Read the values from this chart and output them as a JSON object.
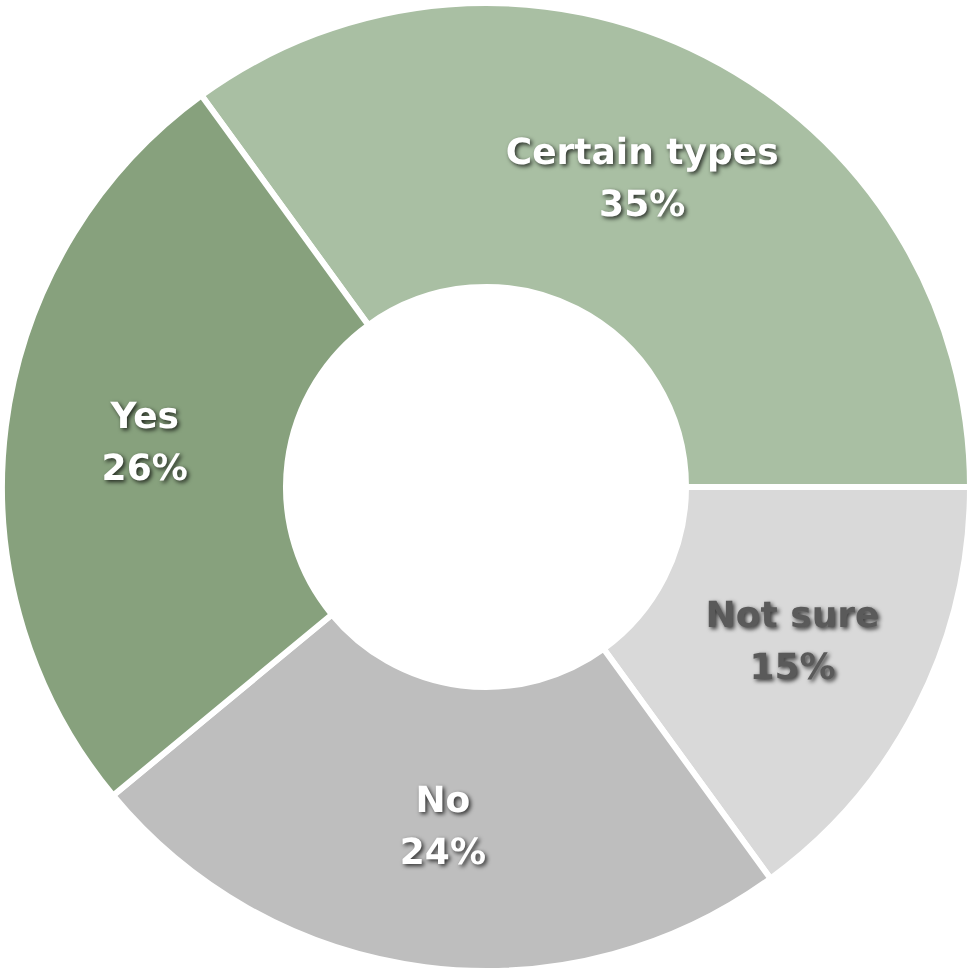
{
  "chart_data": {
    "type": "donut",
    "categories": [
      "Certain types",
      "Not sure",
      "No",
      "Yes"
    ],
    "values": [
      35,
      15,
      24,
      26
    ],
    "colors": [
      "#a9bfa3",
      "#d9d9d9",
      "#bebebe",
      "#87a17d"
    ],
    "value_labels": [
      "35%",
      "15%",
      "24%",
      "26%"
    ]
  }
}
